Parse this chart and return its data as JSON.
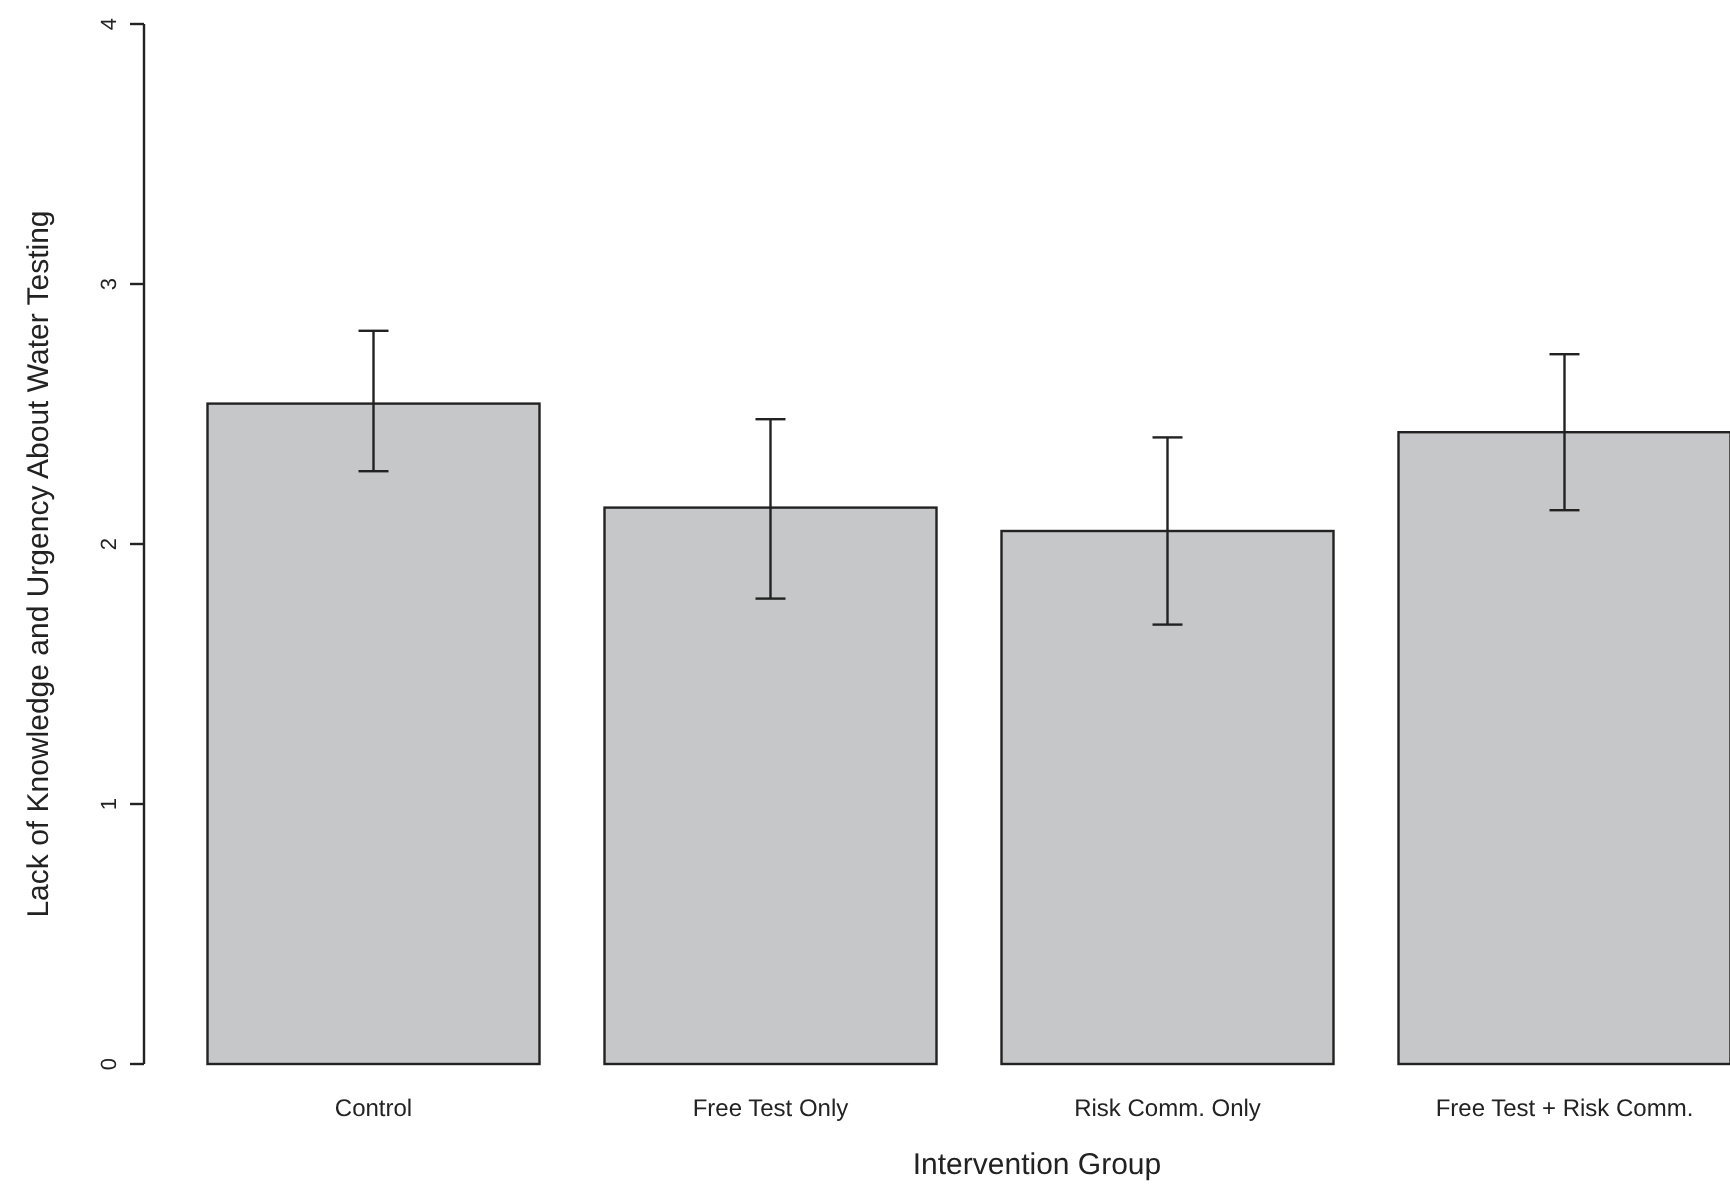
{
  "chart_data": {
    "type": "bar",
    "xlabel": "Intervention Group",
    "ylabel": "Lack of Knowledge and Urgency About Water Testing",
    "categories": [
      "Control",
      "Free Test Only",
      "Risk Comm. Only",
      "Free Test + Risk Comm."
    ],
    "values": [
      2.54,
      2.14,
      2.05,
      2.43
    ],
    "errors": [
      [
        2.28,
        2.82
      ],
      [
        1.79,
        2.48
      ],
      [
        1.69,
        2.41
      ],
      [
        2.13,
        2.73
      ]
    ],
    "color": "#c6c7c9",
    "ylim": [
      0,
      4
    ],
    "yticks": [
      0,
      1,
      2,
      3,
      4
    ],
    "grid": false
  }
}
